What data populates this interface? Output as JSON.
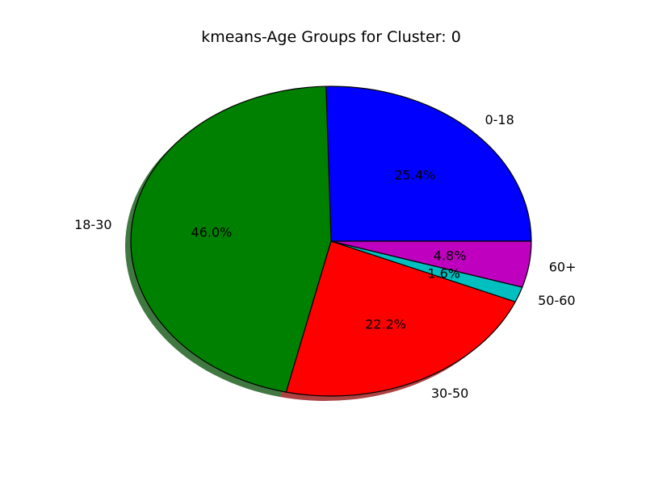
{
  "chart_data": {
    "type": "pie",
    "title": "kmeans-Age Groups for Cluster: 0",
    "categories": [
      "0-18",
      "18-30",
      "30-50",
      "50-60",
      "60+"
    ],
    "values": [
      25.4,
      46.0,
      22.2,
      1.6,
      4.8
    ],
    "percent_labels": [
      "25.4%",
      "46.0%",
      "22.2%",
      "1.6%",
      "4.8%"
    ],
    "colors": [
      "#0000ff",
      "#008000",
      "#ff0000",
      "#00bfbf",
      "#bf00bf"
    ],
    "start_angle_deg": 0,
    "direction": "counterclockwise",
    "shadow": true,
    "legend": "none"
  }
}
